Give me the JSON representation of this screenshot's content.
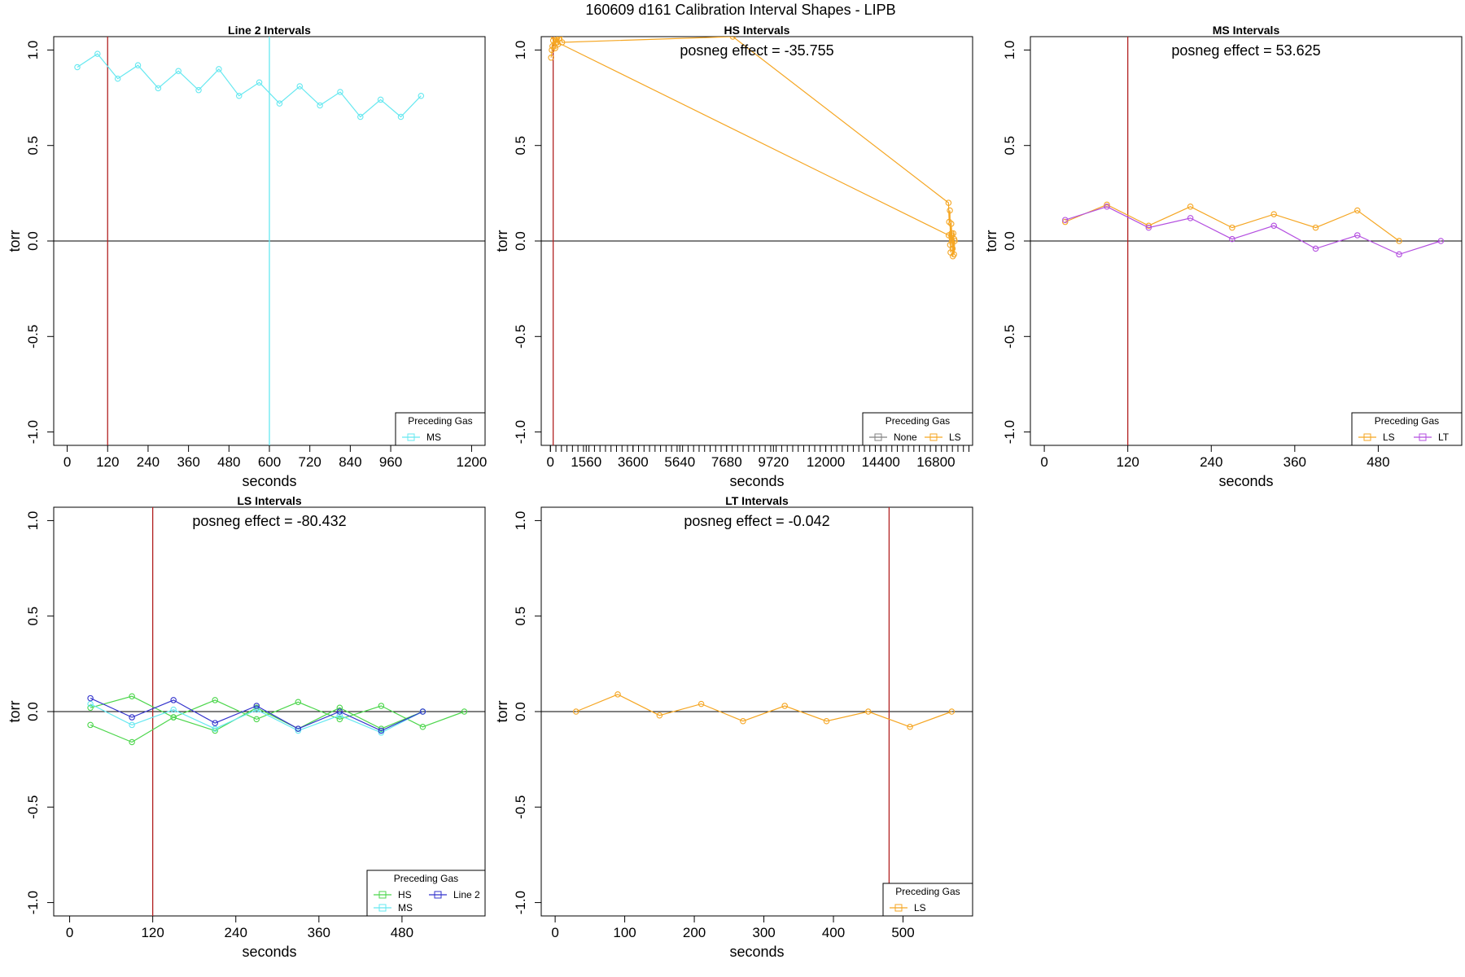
{
  "figure": {
    "title": "160609   d161   Calibration Interval Shapes - LIPB"
  },
  "chart_data": [
    {
      "type": "line",
      "title": "Line 2 Intervals",
      "xlabel": "seconds",
      "ylabel": "torr",
      "xlim": [
        -40,
        1240
      ],
      "ylim": [
        -1.07,
        1.07
      ],
      "xticks": [
        0,
        120,
        240,
        360,
        480,
        600,
        720,
        840,
        960,
        1200
      ],
      "yticks": [
        -1.0,
        -0.5,
        0.0,
        0.5,
        1.0
      ],
      "ytick_labels": [
        "-1.0",
        "-0.5",
        "0.0",
        "0.5",
        "1.0"
      ],
      "vlines": [
        {
          "x": 120,
          "color": "#B22222"
        },
        {
          "x": 600,
          "color": "#66E8F0"
        }
      ],
      "hline": 0,
      "annotation": "",
      "legend": {
        "title": "Preceding Gas",
        "entries": [
          {
            "name": "MS",
            "color": "#66E8F0"
          }
        ]
      },
      "series": [
        {
          "name": "MS",
          "color": "#66E8F0",
          "x": [
            30,
            90,
            150,
            210,
            270,
            330,
            390,
            450,
            510,
            570,
            630,
            690,
            750,
            810,
            870,
            930,
            990,
            1050
          ],
          "y": [
            0.91,
            0.98,
            0.85,
            0.92,
            0.8,
            0.89,
            0.79,
            0.9,
            0.76,
            0.83,
            0.72,
            0.81,
            0.71,
            0.78,
            0.65,
            0.74,
            0.65,
            0.76
          ]
        }
      ]
    },
    {
      "type": "line",
      "title": "HS Intervals",
      "xlabel": "seconds",
      "ylabel": "torr",
      "xlim": [
        -400,
        18400
      ],
      "ylim": [
        -1.07,
        1.07
      ],
      "xticks": [
        0,
        1560,
        3600,
        5640,
        7680,
        9720,
        12000,
        14400,
        16800
      ],
      "yticks": [
        -1.0,
        -0.5,
        0.0,
        0.5,
        1.0
      ],
      "ytick_labels": [
        "-1.0",
        "-0.5",
        "0.0",
        "0.5",
        "1.0"
      ],
      "minor_tick_step": 240,
      "vlines": [
        {
          "x": 120,
          "color": "#B22222"
        }
      ],
      "hline": 0,
      "annotation": "posneg effect = -35.755",
      "legend": {
        "title": "Preceding Gas",
        "entries": [
          {
            "name": "None",
            "color": "#808080"
          },
          {
            "name": "LS",
            "color": "#F5A623"
          }
        ]
      },
      "series": [
        {
          "name": "LS",
          "color": "#F5A623",
          "x": [
            30,
            90,
            150,
            210,
            270,
            330,
            390,
            450,
            510,
            7950,
            17350,
            17380,
            17410,
            17440,
            17470,
            17500,
            17530,
            17560,
            17590,
            17620
          ],
          "y": [
            0.96,
            1.02,
            1.07,
            1.01,
            1.07,
            1.03,
            1.06,
            1.08,
            1.04,
            1.07,
            0.2,
            0.1,
            0.16,
            -0.06,
            0.09,
            0.03,
            -0.04,
            0.04,
            -0.07,
            0.0
          ]
        },
        {
          "name": "LS",
          "color": "#F5A623",
          "x": [
            60,
            120,
            180,
            240,
            300,
            17360,
            17420,
            17480,
            17540,
            17600
          ],
          "y": [
            1.0,
            1.05,
            1.02,
            1.06,
            1.04,
            0.03,
            -0.02,
            0.04,
            -0.08,
            0.01
          ]
        }
      ]
    },
    {
      "type": "line",
      "title": "MS Intervals",
      "xlabel": "seconds",
      "ylabel": "torr",
      "xlim": [
        -20,
        600
      ],
      "ylim": [
        -1.07,
        1.07
      ],
      "xticks": [
        0,
        120,
        240,
        360,
        480
      ],
      "yticks": [
        -1.0,
        -0.5,
        0.0,
        0.5,
        1.0
      ],
      "ytick_labels": [
        "-1.0",
        "-0.5",
        "0.0",
        "0.5",
        "1.0"
      ],
      "vlines": [
        {
          "x": 120,
          "color": "#B22222"
        }
      ],
      "hline": 0,
      "annotation": "posneg effect = 53.625",
      "legend": {
        "title": "Preceding Gas",
        "entries": [
          {
            "name": "LS",
            "color": "#F5A623"
          },
          {
            "name": "LT",
            "color": "#B44FE0"
          }
        ]
      },
      "series": [
        {
          "name": "LS",
          "color": "#F5A623",
          "x": [
            30,
            90,
            150,
            210,
            270,
            330,
            390,
            450,
            510
          ],
          "y": [
            0.1,
            0.19,
            0.08,
            0.18,
            0.07,
            0.14,
            0.07,
            0.16,
            0.0
          ]
        },
        {
          "name": "LT",
          "color": "#B44FE0",
          "x": [
            30,
            90,
            150,
            210,
            270,
            330,
            390,
            450,
            510,
            570
          ],
          "y": [
            0.11,
            0.18,
            0.07,
            0.12,
            0.01,
            0.08,
            -0.04,
            0.03,
            -0.07,
            0.0
          ]
        }
      ]
    },
    {
      "type": "line",
      "title": "LS Intervals",
      "xlabel": "seconds",
      "ylabel": "torr",
      "xlim": [
        -23,
        600
      ],
      "ylim": [
        -1.07,
        1.07
      ],
      "xticks": [
        0,
        120,
        240,
        360,
        480
      ],
      "yticks": [
        -1.0,
        -0.5,
        0.0,
        0.5,
        1.0
      ],
      "ytick_labels": [
        "-1.0",
        "-0.5",
        "0.0",
        "0.5",
        "1.0"
      ],
      "vlines": [
        {
          "x": 120,
          "color": "#B22222"
        }
      ],
      "hline": 0,
      "annotation": "posneg effect = -80.432",
      "legend": {
        "title": "Preceding Gas",
        "entries": [
          {
            "name": "HS",
            "color": "#4CD64C"
          },
          {
            "name": "Line 2",
            "color": "#3333CC"
          },
          {
            "name": "MS",
            "color": "#66E8F0"
          }
        ]
      },
      "series": [
        {
          "name": "HS",
          "color": "#4CD64C",
          "x": [
            30,
            90,
            150,
            210,
            270,
            330,
            390,
            450,
            510,
            570
          ],
          "y": [
            0.02,
            0.08,
            -0.03,
            0.06,
            -0.04,
            0.05,
            -0.04,
            0.03,
            -0.08,
            0.0
          ]
        },
        {
          "name": "HS",
          "color": "#4CD64C",
          "x": [
            30,
            90,
            150,
            210,
            270,
            330,
            390,
            450,
            510
          ],
          "y": [
            -0.07,
            -0.16,
            -0.03,
            -0.1,
            0.02,
            -0.09,
            0.02,
            -0.09,
            0.0
          ]
        },
        {
          "name": "MS",
          "color": "#66E8F0",
          "x": [
            30,
            90,
            150,
            210,
            270,
            330,
            390,
            450,
            510
          ],
          "y": [
            0.04,
            -0.07,
            0.01,
            -0.09,
            0.01,
            -0.1,
            -0.02,
            -0.11,
            0.0
          ]
        },
        {
          "name": "Line 2",
          "color": "#3333CC",
          "x": [
            30,
            90,
            150,
            210,
            270,
            330,
            390,
            450,
            510
          ],
          "y": [
            0.07,
            -0.03,
            0.06,
            -0.06,
            0.03,
            -0.09,
            0.0,
            -0.1,
            0.0
          ]
        }
      ]
    },
    {
      "type": "line",
      "title": "LT Intervals",
      "xlabel": "seconds",
      "ylabel": "torr",
      "xlim": [
        -20,
        600
      ],
      "ylim": [
        -1.07,
        1.07
      ],
      "xticks": [
        0,
        100,
        200,
        300,
        400,
        500
      ],
      "yticks": [
        -1.0,
        -0.5,
        0.0,
        0.5,
        1.0
      ],
      "ytick_labels": [
        "-1.0",
        "-0.5",
        "0.0",
        "0.5",
        "1.0"
      ],
      "vlines": [
        {
          "x": 480,
          "color": "#B22222"
        }
      ],
      "hline": 0,
      "annotation": "posneg effect = -0.042",
      "legend": {
        "title": "Preceding Gas",
        "entries": [
          {
            "name": "LS",
            "color": "#F5A623"
          }
        ]
      },
      "series": [
        {
          "name": "LS",
          "color": "#F5A623",
          "x": [
            30,
            90,
            150,
            210,
            270,
            330,
            390,
            450,
            510,
            570
          ],
          "y": [
            0.0,
            0.09,
            -0.02,
            0.04,
            -0.05,
            0.03,
            -0.05,
            0.0,
            -0.08,
            0.0
          ]
        }
      ]
    }
  ]
}
